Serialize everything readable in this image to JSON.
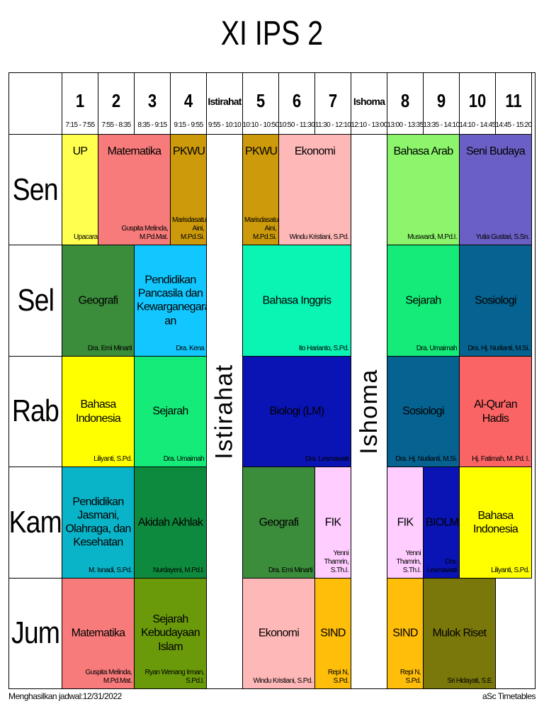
{
  "title": "XI IPS 2",
  "periods": [
    {
      "num": "1",
      "time": "7:15 - 7:55"
    },
    {
      "num": "2",
      "time": "7:55 - 8:35"
    },
    {
      "num": "3",
      "time": "8:35 - 9:15"
    },
    {
      "num": "4",
      "time": "9:15 - 9:55"
    },
    {
      "label": "Istirahat",
      "time": "9:55 - 10:10"
    },
    {
      "num": "5",
      "time": "10:10 - 10:50"
    },
    {
      "num": "6",
      "time": "10:50 - 11:30"
    },
    {
      "num": "7",
      "time": "11:30 - 12:10"
    },
    {
      "label": "Ishoma",
      "time": "12:10 - 13:00"
    },
    {
      "num": "8",
      "time": "13:00 - 13:35"
    },
    {
      "num": "9",
      "time": "13:35 - 14:10"
    },
    {
      "num": "10",
      "time": "14:10 - 14:45"
    },
    {
      "num": "11",
      "time": "14:45 - 15:20"
    }
  ],
  "days": [
    "Sen",
    "Sel",
    "Rab",
    "Kam",
    "Jum"
  ],
  "breaks": {
    "istirahat": "Istirahat",
    "ishoma": "Ishoma"
  },
  "lessons": [
    {
      "day": 0,
      "start": 0,
      "span": 1,
      "subject": "UP",
      "teacher": "Upacara",
      "color": "#ffff4f",
      "subject_top": true,
      "teacher_left": true
    },
    {
      "day": 0,
      "start": 1,
      "span": 2,
      "subject": "Matematika",
      "teacher": "Guspita Melinda,\nM.Pd.Mat.",
      "color": "#f77b7b",
      "subject_top": true
    },
    {
      "day": 0,
      "start": 3,
      "span": 1,
      "subject": "PKWU",
      "teacher": "Marisdasatul\nAini, M.Pd.Si.",
      "color": "#cc9a0a",
      "subject_top": true
    },
    {
      "day": 0,
      "start": 5,
      "span": 1,
      "subject": "PKWU",
      "teacher": "Marisdasatul\nAini, M.Pd.Si.",
      "color": "#cc9a0a",
      "subject_top": true
    },
    {
      "day": 0,
      "start": 6,
      "span": 2,
      "subject": "Ekonomi",
      "teacher": "Windu Kristiani, S.Pd.",
      "color": "#ffb8b8",
      "subject_top": true
    },
    {
      "day": 0,
      "start": 9,
      "span": 2,
      "subject": "Bahasa Arab",
      "teacher": "Muswardi, M.Pd.I.",
      "color": "#8cf56b",
      "subject_top": true
    },
    {
      "day": 0,
      "start": 11,
      "span": 2,
      "subject": "Seni Budaya",
      "teacher": "Yutia Gustari, S.Sn.",
      "color": "#6a5fc4",
      "subject_top": true
    },
    {
      "day": 1,
      "start": 0,
      "span": 2,
      "subject": "Geografi",
      "teacher": "Dra. Emi Minarti",
      "color": "#3b8c3b"
    },
    {
      "day": 1,
      "start": 2,
      "span": 2,
      "subject": "Pendidikan\nPancasila dan\nKewarganegara\nan",
      "teacher": "Dra. Kena",
      "color": "#12c7ff"
    },
    {
      "day": 1,
      "start": 5,
      "span": 3,
      "subject": "Bahasa Inggris",
      "teacher": "Ito Harianto, S.Pd.",
      "color": "#0af5b4"
    },
    {
      "day": 1,
      "start": 9,
      "span": 2,
      "subject": "Sejarah",
      "teacher": "Dra. Umaimah",
      "color": "#14eb78"
    },
    {
      "day": 1,
      "start": 11,
      "span": 2,
      "subject": "Sosiologi",
      "teacher": "Dra. Hj. Nurlianti, M.Si.",
      "color": "#066290"
    },
    {
      "day": 2,
      "start": 0,
      "span": 2,
      "subject": "Bahasa\nIndonesia",
      "teacher": "Liliyanti, S.Pd.",
      "color": "#ffff00"
    },
    {
      "day": 2,
      "start": 2,
      "span": 2,
      "subject": "Sejarah",
      "teacher": "Dra. Umaimah",
      "color": "#14eb78"
    },
    {
      "day": 2,
      "start": 5,
      "span": 3,
      "subject": "Biologi (LM)",
      "teacher": "Dra. Lesmawati",
      "color": "#0a14b4"
    },
    {
      "day": 2,
      "start": 9,
      "span": 2,
      "subject": "Sosiologi",
      "teacher": "Dra. Hj. Nurlianti, M.Si.",
      "color": "#066290"
    },
    {
      "day": 2,
      "start": 11,
      "span": 2,
      "subject": "Al-Qur'an Hadis",
      "teacher": "Hj. Fatimah, M. Pd. I.",
      "color": "#fa6464"
    },
    {
      "day": 3,
      "start": 0,
      "span": 2,
      "subject": "Pendidikan\nJasmani,\nOlahraga, dan\nKesehatan",
      "teacher": "M. Isnadi, S.Pd.",
      "color": "#0ab4c8"
    },
    {
      "day": 3,
      "start": 2,
      "span": 2,
      "subject": "Akidah Akhlak",
      "teacher": "Nurdayeni, M.Pd.I.",
      "color": "#0e8a3e"
    },
    {
      "day": 3,
      "start": 5,
      "span": 2,
      "subject": "Geografi",
      "teacher": "Dra. Emi Minarti",
      "color": "#3b8c3b"
    },
    {
      "day": 3,
      "start": 7,
      "span": 1,
      "subject": "FIK",
      "teacher": "Yenni\nThamrin,\nS.Th.I.",
      "color": "#ffcdff"
    },
    {
      "day": 3,
      "start": 9,
      "span": 1,
      "subject": "FIK",
      "teacher": "Yenni\nThamrin,\nS.Th.I.",
      "color": "#ffcdff"
    },
    {
      "day": 3,
      "start": 10,
      "span": 1,
      "subject": "BIOLM",
      "teacher": "Dra.\nLesmawati",
      "color": "#0a14b4"
    },
    {
      "day": 3,
      "start": 11,
      "span": 2,
      "subject": "Bahasa\nIndonesia",
      "teacher": "Liliyanti, S.Pd.",
      "color": "#ffff00"
    },
    {
      "day": 4,
      "start": 0,
      "span": 2,
      "subject": "Matematika",
      "teacher": "Guspita Melinda,\nM.Pd.Mat.",
      "color": "#f77b7b"
    },
    {
      "day": 4,
      "start": 2,
      "span": 2,
      "subject": "Sejarah\nKebudayaan\nIslam",
      "teacher": "Ryan Wenang Irman,\nS.Pd.I.",
      "color": "#6a9a0a"
    },
    {
      "day": 4,
      "start": 5,
      "span": 2,
      "subject": "Ekonomi",
      "teacher": "Windu Kristiani, S.Pd.",
      "color": "#ffb8b8"
    },
    {
      "day": 4,
      "start": 7,
      "span": 1,
      "subject": "SIND",
      "teacher": "Repi N,\nS.Pd.",
      "color": "#ffbe0a"
    },
    {
      "day": 4,
      "start": 9,
      "span": 1,
      "subject": "SIND",
      "teacher": "Repi N,\nS.Pd.",
      "color": "#ffbe0a"
    },
    {
      "day": 4,
      "start": 10,
      "span": 2,
      "subject": "Mulok Riset",
      "teacher": "Sri Hidayati, S.E.",
      "color": "#7a780a"
    }
  ],
  "footer": {
    "left": "Menghasilkan jadwal:12/31/2022",
    "right": "aSc Timetables"
  }
}
